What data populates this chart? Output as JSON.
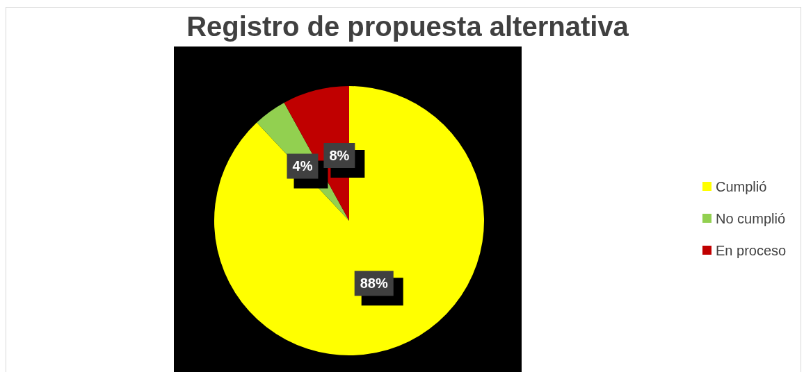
{
  "chart_data": {
    "type": "pie",
    "title": "Registro de propuesta alternativa",
    "categories": [
      "Cumplió",
      "No cumplió",
      "En proceso"
    ],
    "values": [
      88,
      4,
      8
    ],
    "colors": [
      "#ffff00",
      "#92d050",
      "#c00000"
    ],
    "value_labels": [
      "88%",
      "4%",
      "8%"
    ],
    "legend": "right"
  }
}
